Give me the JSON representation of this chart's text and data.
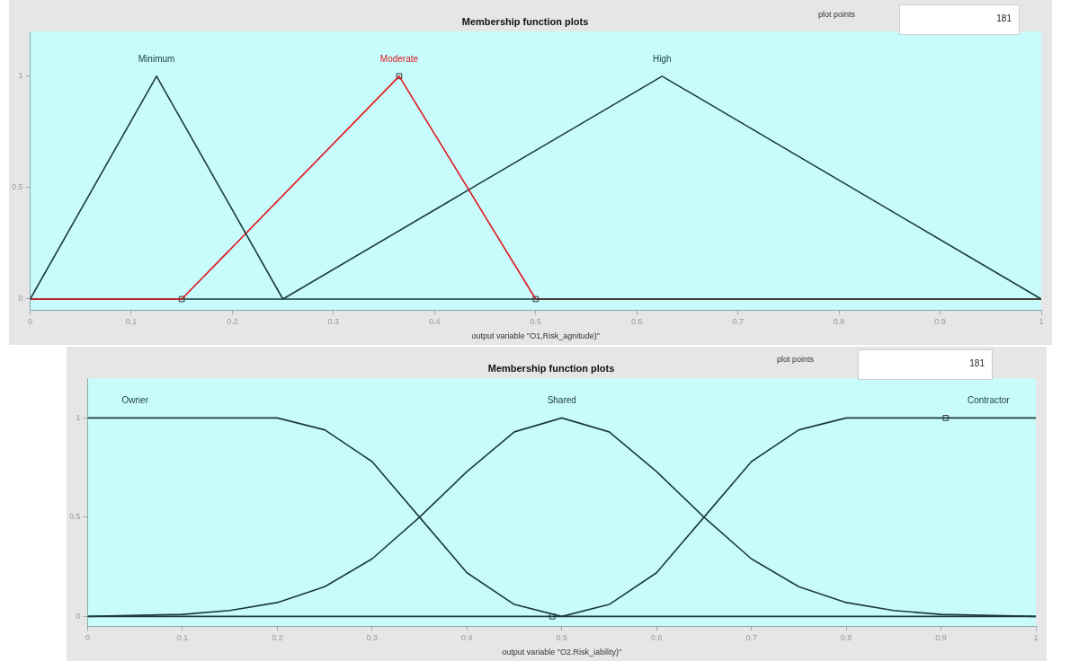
{
  "chart_data": [
    {
      "type": "line",
      "title": "Membership function plots",
      "xlabel": "output variable \"O1,Risk_agnitude)\"",
      "xlim": [
        0,
        1
      ],
      "xticks": [
        0,
        0.1,
        0.2,
        0.3,
        0.4,
        0.5,
        0.6,
        0.7,
        0.8,
        0.9,
        1
      ],
      "ylim": [
        -0.05,
        1.2
      ],
      "yticks": [
        0,
        0.5,
        1
      ],
      "grid": false,
      "legend": false,
      "line_style": "solid",
      "marker": "none",
      "annotations": [
        "plot points",
        "181"
      ],
      "series": [
        {
          "name": "Minimum",
          "color": "#1c3a3a",
          "x": [
            0,
            0.125,
            0.25,
            1
          ],
          "values": [
            0,
            1,
            0,
            0
          ]
        },
        {
          "name": "Moderate",
          "color": "#e0161b",
          "x": [
            0,
            0.15,
            0.365,
            0.5,
            1
          ],
          "values": [
            0,
            0,
            1,
            0,
            0
          ]
        },
        {
          "name": "High",
          "color": "#1c3a3a",
          "x": [
            0,
            0.25,
            0.625,
            1
          ],
          "values": [
            0,
            0,
            1,
            0
          ]
        },
        {
          "type": "scatter",
          "marker": "square",
          "color": "#333333",
          "x": [
            0.15,
            0.365,
            0.5
          ],
          "values": [
            0,
            1,
            0
          ]
        }
      ]
    },
    {
      "type": "line",
      "title": "Membership function plots",
      "xlabel": "output variable \"O2.Risk_iability)\"",
      "xlim": [
        0,
        1
      ],
      "xticks": [
        0,
        0.1,
        0.2,
        0.3,
        0.4,
        0.5,
        0.6,
        0.7,
        0.8,
        0.9,
        1
      ],
      "ylim": [
        -0.05,
        1.2
      ],
      "yticks": [
        0,
        0.5,
        1
      ],
      "grid": false,
      "legend": false,
      "line_style": "solid",
      "marker": "none",
      "annotations": [
        "plot points",
        "181"
      ],
      "series": [
        {
          "name": "Owner",
          "color": "#1c3a3a",
          "x": [
            0,
            0.1,
            0.2,
            0.25,
            0.3,
            0.35,
            0.4,
            0.45,
            0.5,
            1
          ],
          "values": [
            1,
            1,
            1,
            0.94,
            0.78,
            0.5,
            0.22,
            0.06,
            0,
            0
          ]
        },
        {
          "name": "Shared",
          "color": "#1c3a3a",
          "x": [
            0,
            0.1,
            0.15,
            0.2,
            0.25,
            0.3,
            0.35,
            0.4,
            0.45,
            0.5,
            0.55,
            0.6,
            0.65,
            0.7,
            0.75,
            0.8,
            0.85,
            0.9,
            1
          ],
          "values": [
            0,
            0.01,
            0.03,
            0.07,
            0.15,
            0.29,
            0.5,
            0.73,
            0.93,
            1,
            0.93,
            0.73,
            0.5,
            0.29,
            0.15,
            0.07,
            0.03,
            0.01,
            0
          ]
        },
        {
          "name": "Contractor",
          "color": "#1c3a3a",
          "x": [
            0,
            0.5,
            0.55,
            0.6,
            0.65,
            0.7,
            0.75,
            0.8,
            0.9,
            1
          ],
          "values": [
            0,
            0,
            0.06,
            0.22,
            0.5,
            0.78,
            0.94,
            1,
            1,
            1
          ]
        },
        {
          "type": "scatter",
          "marker": "square",
          "color": "#333333",
          "x": [
            0.49,
            0.905
          ],
          "values": [
            0,
            1
          ]
        }
      ]
    }
  ]
}
